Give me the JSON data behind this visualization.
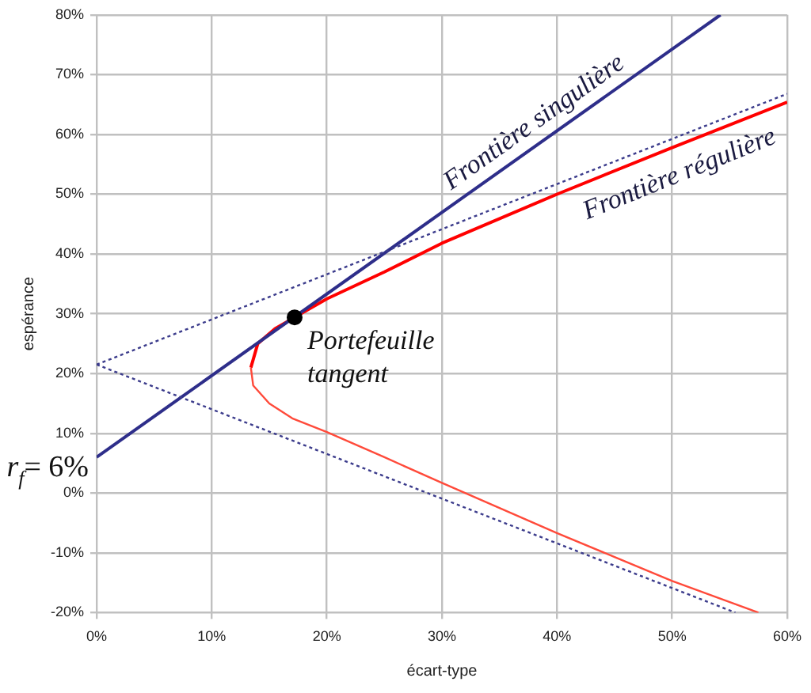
{
  "chart_data": {
    "type": "line",
    "xlabel": "écart-type",
    "ylabel": "espérance",
    "xlim": [
      0,
      60
    ],
    "ylim": [
      -20,
      80
    ],
    "xticks": [
      {
        "value": 0,
        "label": "0%"
      },
      {
        "value": 10,
        "label": "10%"
      },
      {
        "value": 20,
        "label": "20%"
      },
      {
        "value": 30,
        "label": "30%"
      },
      {
        "value": 40,
        "label": "40%"
      },
      {
        "value": 50,
        "label": "50%"
      },
      {
        "value": 60,
        "label": "60%"
      }
    ],
    "yticks": [
      {
        "value": -20,
        "label": "-20%"
      },
      {
        "value": -10,
        "label": "-10%"
      },
      {
        "value": 0,
        "label": "0%"
      },
      {
        "value": 10,
        "label": "10%"
      },
      {
        "value": 20,
        "label": "20%"
      },
      {
        "value": 30,
        "label": "30%"
      },
      {
        "value": 40,
        "label": "40%"
      },
      {
        "value": 50,
        "label": "50%"
      },
      {
        "value": 60,
        "label": "60%"
      },
      {
        "value": 70,
        "label": "70%"
      },
      {
        "value": 80,
        "label": "80%"
      }
    ],
    "grid": true,
    "legend": false,
    "marker": "none",
    "series": [
      {
        "line_style": "dotted",
        "color": "#3c3c8c",
        "x": [
          0,
          60
        ],
        "values": [
          21.5,
          66.8
        ]
      },
      {
        "line_style": "dotted",
        "color": "#3c3c8c",
        "x": [
          0,
          55.5
        ],
        "values": [
          21.5,
          -20
        ]
      },
      {
        "name": "Frontière singulière",
        "color": "#2e2e8a",
        "x": [
          0,
          54.2
        ],
        "values": [
          6,
          80
        ]
      },
      {
        "name": "Frontière régulière",
        "color": "#ff0000",
        "x": [
          13.4,
          14,
          15.5,
          17.2,
          20,
          25,
          30,
          40,
          50,
          60
        ],
        "values": [
          21,
          25,
          27.5,
          29.4,
          32.5,
          37,
          41.8,
          50,
          57.8,
          65.4
        ]
      },
      {
        "color": "#ff4a3a",
        "x": [
          13.4,
          13.6,
          15,
          17,
          20,
          25,
          30,
          35,
          40,
          45,
          50,
          57.5
        ],
        "values": [
          21,
          18,
          15,
          12.5,
          10.2,
          6,
          1.7,
          -2.5,
          -6.7,
          -10.7,
          -14.7,
          -20
        ]
      },
      {
        "type": "scatter",
        "marker": "circle",
        "color": "#000000",
        "x": [
          17.2
        ],
        "values": [
          29.4
        ]
      }
    ],
    "annotations": [
      {
        "text": "Portefeuille tangent",
        "x": 17.2,
        "y": 29.4
      },
      {
        "text": "r$_{f}$= 6%",
        "x": 0,
        "y": 6
      }
    ]
  }
}
